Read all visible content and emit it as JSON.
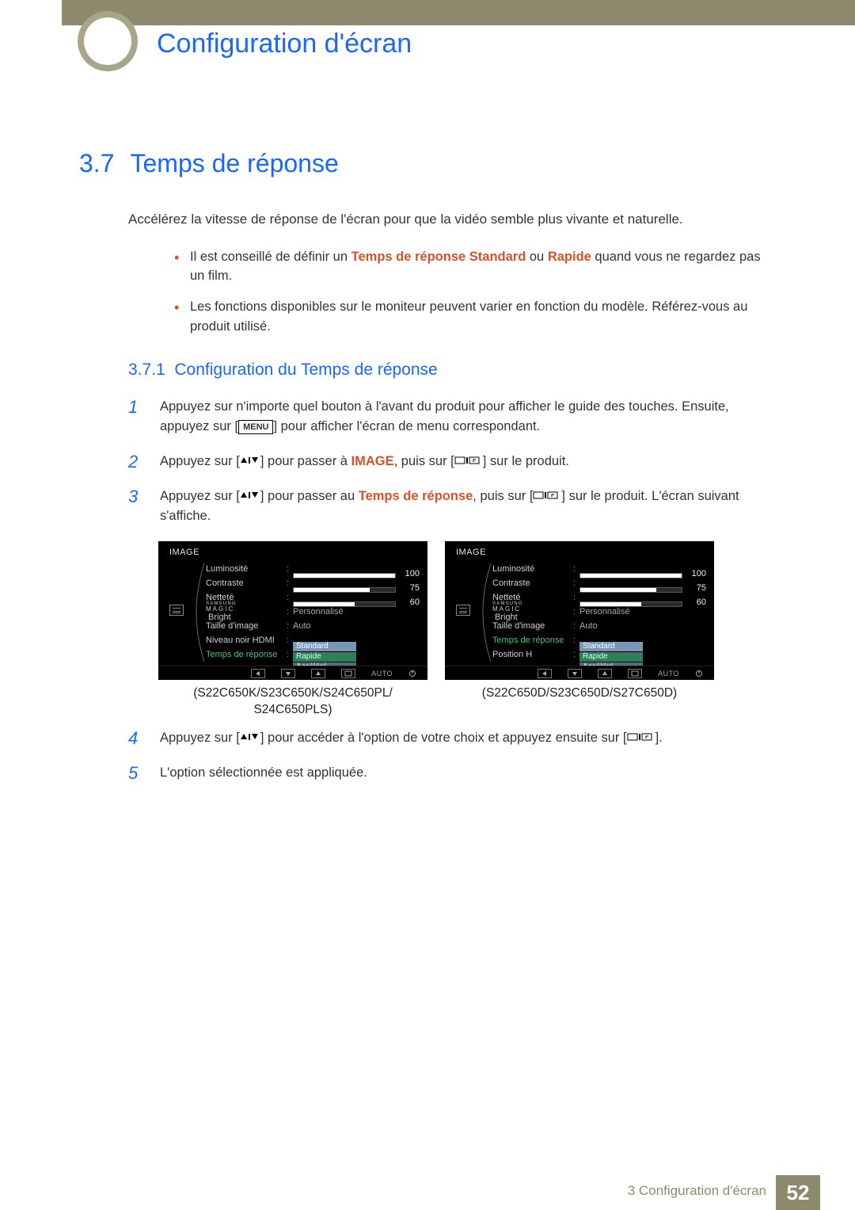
{
  "chapter_title": "Configuration d'écran",
  "section": {
    "num": "3.7",
    "title": "Temps de réponse"
  },
  "intro": "Accélérez la vitesse de réponse de l'écran pour que la vidéo semble plus vivante et naturelle.",
  "info": {
    "b1_pre": "Il est conseillé de définir un ",
    "b1_kw1": "Temps de réponse Standard",
    "b1_mid": " ou ",
    "b1_kw2": "Rapide",
    "b1_post": " quand vous ne regardez pas un film.",
    "b2": "Les fonctions disponibles sur le moniteur peuvent varier en fonction du modèle. Référez-vous au produit utilisé."
  },
  "subsection": {
    "num": "3.7.1",
    "title": "Configuration du Temps de réponse"
  },
  "steps": {
    "s1_a": "Appuyez sur n'importe quel bouton à l'avant du produit pour afficher le guide des touches. Ensuite, appuyez sur [",
    "s1_menu": "MENU",
    "s1_b": "] pour afficher l'écran de menu correspondant.",
    "s2_a": "Appuyez sur [",
    "s2_b": "] pour passer à ",
    "s2_kw": "IMAGE",
    "s2_c": ", puis sur [",
    "s2_d": "] sur le produit.",
    "s3_a": "Appuyez sur [",
    "s3_b": "] pour passer au ",
    "s3_kw": "Temps de réponse",
    "s3_c": ", puis sur [",
    "s3_d": "] sur le produit. L'écran suivant s'affiche.",
    "s4_a": "Appuyez sur [",
    "s4_b": "] pour accéder à l'option de votre choix et appuyez ensuite sur [",
    "s4_c": "].",
    "s5": "L'option sélectionnée est appliquée."
  },
  "osd": {
    "title": "IMAGE",
    "rows_left": [
      {
        "label": "Luminosité",
        "type": "bar",
        "value": 100,
        "fill": 100
      },
      {
        "label": "Contraste",
        "type": "bar",
        "value": 75,
        "fill": 75
      },
      {
        "label": "Netteté",
        "type": "bar",
        "value": 60,
        "fill": 60
      },
      {
        "label_magic": true,
        "type": "text",
        "text": "Personnalisé"
      },
      {
        "label": "Taille d'image",
        "type": "text",
        "text": "Auto"
      },
      {
        "label": "Niveau noir HDMI",
        "type": "drop3",
        "options": [
          "Standard",
          "Rapide",
          "Accéléré"
        ]
      },
      {
        "label": "Temps de réponse",
        "type": "empty",
        "hl": true
      }
    ],
    "rows_right": [
      {
        "label": "Luminosité",
        "type": "bar",
        "value": 100,
        "fill": 100
      },
      {
        "label": "Contraste",
        "type": "bar",
        "value": 75,
        "fill": 75
      },
      {
        "label": "Netteté",
        "type": "bar",
        "value": 60,
        "fill": 60
      },
      {
        "label_magic": true,
        "type": "text",
        "text": "Personnalisé"
      },
      {
        "label": "Taille d'image",
        "type": "text",
        "text": "Auto"
      },
      {
        "label": "Temps de réponse",
        "type": "drop3",
        "hl": true,
        "options": [
          "Standard",
          "Rapide",
          "Accéléré"
        ]
      },
      {
        "label": "Position H",
        "type": "empty"
      }
    ],
    "nav_auto": "AUTO"
  },
  "captions": {
    "left": "(S22C650K/S23C650K/S24C650PL/\nS24C650PLS)",
    "right": "(S22C650D/S23C650D/S27C650D)"
  },
  "footer": {
    "text": "3 Configuration d'écran",
    "page": "52"
  },
  "colors": {
    "accent": "#1a66ff",
    "kw": "#d4522c",
    "band": "#8e8a6e"
  }
}
